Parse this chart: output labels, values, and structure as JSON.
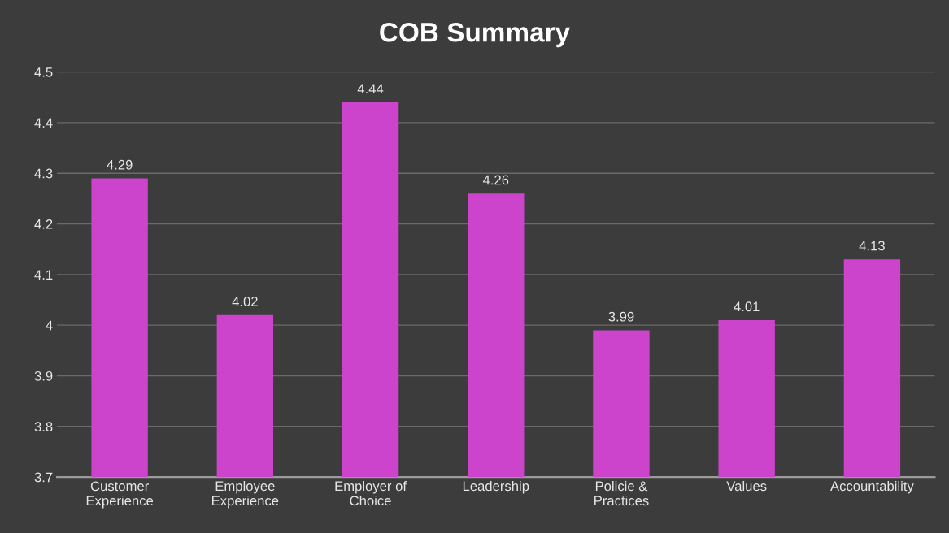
{
  "chart_data": {
    "type": "bar",
    "title": "COB Summary",
    "categories": [
      "Customer\nExperience",
      "Employee\nExperience",
      "Employer of\nChoice",
      "Leadership",
      "Policie &\nPractices",
      "Values",
      "Accountability"
    ],
    "values": [
      4.29,
      4.02,
      4.44,
      4.26,
      3.99,
      4.01,
      4.13
    ],
    "color": "#cc44cc",
    "ylim": [
      3.7,
      4.5
    ],
    "yticks": [
      3.7,
      3.8,
      3.9,
      4,
      4.1,
      4.2,
      4.3,
      4.4,
      4.5
    ],
    "grid": "y",
    "data_labels": true
  }
}
